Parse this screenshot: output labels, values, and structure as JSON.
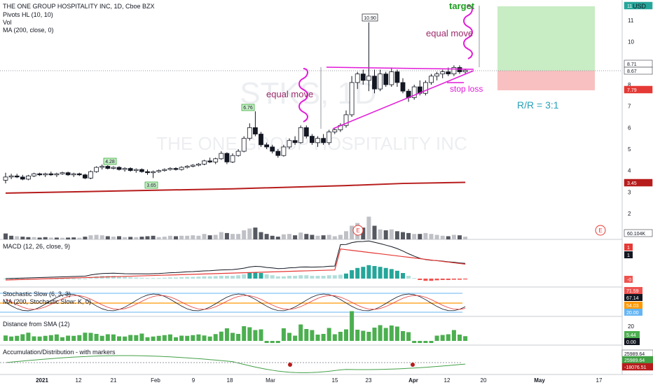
{
  "header": {
    "symbol_line": "THE ONE GROUP HOSPITALITY INC, 1D, Cboe BZX",
    "indicators": [
      "Pivots HL (10, 10)",
      "Vol",
      "MA (200, close, 0)"
    ],
    "currency": "USD",
    "watermark_symbol": "STKS, 1D",
    "watermark_name": "THE ONE GROUP HOSPITALITY INC"
  },
  "annotations": {
    "target": "target",
    "equal_move_right": "equal move",
    "equal_move_left": "equal move",
    "stop_loss": "stop loss",
    "rr": "R/R = 3:1",
    "pivot_labels": [
      "10.90",
      "6.76",
      "4.28",
      "3.65"
    ],
    "earnings_marker": "E"
  },
  "colors": {
    "up": "#ffffff",
    "down": "#131722",
    "annotation_magenta": "#e21ad8",
    "annotation_text": "#9c2a6b",
    "target_text": "#1e9e1e",
    "rr_text": "#26a0b8",
    "ma_line": "#b71c1c",
    "profit_zone": "#c8ecc4",
    "loss_zone": "#f8c0c0"
  },
  "chart_data": {
    "type": "candlestick",
    "price_axis_ticks": [
      "11",
      "10",
      "9",
      "8",
      "7",
      "6",
      "5",
      "4",
      "3",
      "2"
    ],
    "price_badges": [
      {
        "value": "11",
        "color": "#26a69a"
      },
      {
        "value": "8.71",
        "color": "#131722"
      },
      {
        "value": "8.67",
        "color": "#131722"
      },
      {
        "value": "7.79",
        "color": "#e53935"
      },
      {
        "value": "3.45",
        "color": "#b71c1c"
      },
      {
        "value": "60.104K",
        "color": "#131722"
      }
    ],
    "time_axis_labels": [
      "2021",
      "12",
      "21",
      "Feb",
      "9",
      "18",
      "Mar",
      "15",
      "23",
      "Apr",
      "12",
      "20",
      "May",
      "17"
    ],
    "ohlc": [
      [
        3.55,
        3.9,
        3.4,
        3.7
      ],
      [
        3.7,
        3.85,
        3.6,
        3.75
      ],
      [
        3.75,
        3.85,
        3.65,
        3.7
      ],
      [
        3.7,
        3.8,
        3.55,
        3.6
      ],
      [
        3.6,
        3.8,
        3.55,
        3.75
      ],
      [
        3.75,
        3.9,
        3.7,
        3.85
      ],
      [
        3.85,
        3.9,
        3.75,
        3.8
      ],
      [
        3.8,
        3.9,
        3.7,
        3.85
      ],
      [
        3.85,
        3.95,
        3.75,
        3.8
      ],
      [
        3.8,
        3.9,
        3.7,
        3.85
      ],
      [
        3.85,
        3.95,
        3.8,
        3.9
      ],
      [
        3.9,
        3.95,
        3.75,
        3.8
      ],
      [
        3.8,
        3.9,
        3.7,
        3.85
      ],
      [
        3.85,
        3.9,
        3.75,
        3.8
      ],
      [
        3.8,
        3.85,
        3.6,
        3.65
      ],
      [
        3.65,
        4.0,
        3.6,
        3.95
      ],
      [
        3.95,
        4.2,
        3.9,
        4.15
      ],
      [
        4.15,
        4.28,
        4.05,
        4.2
      ],
      [
        4.2,
        4.25,
        4.05,
        4.1
      ],
      [
        4.1,
        4.2,
        4.05,
        4.15
      ],
      [
        4.15,
        4.2,
        4.0,
        4.05
      ],
      [
        4.05,
        4.15,
        3.95,
        4.1
      ],
      [
        4.1,
        4.15,
        3.95,
        4.0
      ],
      [
        4.0,
        4.1,
        3.9,
        4.05
      ],
      [
        4.05,
        4.1,
        3.9,
        3.95
      ],
      [
        3.95,
        4.05,
        3.8,
        3.9
      ],
      [
        3.9,
        4.0,
        3.65,
        3.95
      ],
      [
        3.95,
        4.05,
        3.9,
        4.0
      ],
      [
        4.0,
        4.1,
        3.95,
        4.05
      ],
      [
        4.05,
        4.15,
        4.0,
        4.1
      ],
      [
        4.1,
        4.15,
        4.0,
        4.05
      ],
      [
        4.05,
        4.2,
        4.0,
        4.15
      ],
      [
        4.15,
        4.25,
        4.1,
        4.2
      ],
      [
        4.2,
        4.3,
        4.15,
        4.25
      ],
      [
        4.25,
        4.35,
        4.2,
        4.3
      ],
      [
        4.3,
        4.5,
        4.25,
        4.45
      ],
      [
        4.45,
        4.6,
        4.35,
        4.4
      ],
      [
        4.4,
        4.6,
        4.3,
        4.55
      ],
      [
        4.55,
        4.9,
        4.5,
        4.8
      ],
      [
        4.8,
        4.85,
        4.3,
        4.4
      ],
      [
        4.4,
        4.8,
        4.35,
        4.7
      ],
      [
        4.7,
        5.0,
        4.65,
        4.9
      ],
      [
        4.9,
        5.6,
        4.85,
        5.5
      ],
      [
        5.5,
        6.2,
        5.4,
        6.0
      ],
      [
        6.0,
        6.76,
        5.6,
        5.7
      ],
      [
        5.7,
        5.8,
        5.1,
        5.2
      ],
      [
        5.2,
        5.3,
        5.0,
        5.1
      ],
      [
        5.1,
        5.2,
        4.8,
        4.9
      ],
      [
        4.9,
        5.0,
        4.6,
        4.7
      ],
      [
        4.7,
        5.2,
        4.65,
        5.1
      ],
      [
        5.1,
        5.5,
        5.0,
        5.4
      ],
      [
        5.4,
        5.6,
        5.2,
        5.3
      ],
      [
        5.3,
        6.1,
        5.25,
        6.0
      ],
      [
        6.0,
        6.1,
        5.5,
        5.6
      ],
      [
        5.6,
        5.7,
        5.2,
        5.3
      ],
      [
        5.3,
        5.6,
        5.1,
        5.5
      ],
      [
        5.5,
        5.7,
        5.2,
        5.3
      ],
      [
        5.3,
        5.9,
        5.2,
        5.8
      ],
      [
        5.8,
        6.0,
        5.7,
        5.9
      ],
      [
        5.9,
        6.2,
        5.8,
        6.1
      ],
      [
        6.1,
        6.8,
        6.0,
        6.6
      ],
      [
        6.6,
        8.4,
        6.5,
        8.1
      ],
      [
        8.1,
        8.6,
        7.8,
        8.5
      ],
      [
        8.5,
        8.7,
        8.0,
        8.2
      ],
      [
        8.2,
        10.9,
        7.7,
        8.4
      ],
      [
        8.4,
        8.7,
        7.6,
        7.8
      ],
      [
        7.8,
        8.7,
        7.7,
        8.5
      ],
      [
        8.5,
        8.6,
        7.9,
        8.0
      ],
      [
        8.0,
        8.8,
        7.9,
        8.6
      ],
      [
        8.6,
        8.7,
        7.9,
        8.1
      ],
      [
        8.1,
        8.3,
        7.6,
        7.7
      ],
      [
        7.7,
        7.8,
        7.2,
        7.4
      ],
      [
        7.4,
        8.0,
        7.3,
        7.9
      ],
      [
        7.9,
        8.2,
        7.5,
        7.6
      ],
      [
        7.6,
        8.2,
        7.5,
        8.1
      ],
      [
        8.1,
        8.5,
        8.0,
        8.4
      ],
      [
        8.4,
        8.6,
        8.2,
        8.5
      ],
      [
        8.5,
        8.7,
        8.3,
        8.6
      ],
      [
        8.6,
        8.8,
        8.4,
        8.5
      ],
      [
        8.5,
        8.9,
        8.4,
        8.8
      ],
      [
        8.8,
        8.9,
        8.5,
        8.6
      ],
      [
        8.6,
        8.75,
        8.5,
        8.67
      ]
    ],
    "volume": [
      [
        65,
        "d"
      ],
      [
        40,
        "d"
      ],
      [
        35,
        "u"
      ],
      [
        30,
        "d"
      ],
      [
        25,
        "d"
      ],
      [
        25,
        "u"
      ],
      [
        20,
        "d"
      ],
      [
        25,
        "d"
      ],
      [
        20,
        "u"
      ],
      [
        20,
        "d"
      ],
      [
        18,
        "u"
      ],
      [
        20,
        "d"
      ],
      [
        22,
        "d"
      ],
      [
        18,
        "u"
      ],
      [
        30,
        "d"
      ],
      [
        45,
        "u"
      ],
      [
        50,
        "u"
      ],
      [
        45,
        "u"
      ],
      [
        35,
        "d"
      ],
      [
        30,
        "u"
      ],
      [
        35,
        "d"
      ],
      [
        25,
        "u"
      ],
      [
        28,
        "d"
      ],
      [
        25,
        "u"
      ],
      [
        30,
        "d"
      ],
      [
        35,
        "d"
      ],
      [
        40,
        "d"
      ],
      [
        25,
        "u"
      ],
      [
        30,
        "u"
      ],
      [
        40,
        "u"
      ],
      [
        35,
        "d"
      ],
      [
        40,
        "u"
      ],
      [
        40,
        "u"
      ],
      [
        45,
        "u"
      ],
      [
        40,
        "u"
      ],
      [
        60,
        "u"
      ],
      [
        45,
        "d"
      ],
      [
        50,
        "u"
      ],
      [
        80,
        "u"
      ],
      [
        70,
        "d"
      ],
      [
        60,
        "u"
      ],
      [
        60,
        "u"
      ],
      [
        100,
        "u"
      ],
      [
        120,
        "u"
      ],
      [
        130,
        "d"
      ],
      [
        80,
        "d"
      ],
      [
        60,
        "d"
      ],
      [
        40,
        "d"
      ],
      [
        30,
        "d"
      ],
      [
        55,
        "u"
      ],
      [
        60,
        "u"
      ],
      [
        45,
        "d"
      ],
      [
        75,
        "u"
      ],
      [
        60,
        "d"
      ],
      [
        50,
        "d"
      ],
      [
        40,
        "u"
      ],
      [
        45,
        "d"
      ],
      [
        50,
        "u"
      ],
      [
        35,
        "u"
      ],
      [
        50,
        "u"
      ],
      [
        90,
        "u"
      ],
      [
        150,
        "u"
      ],
      [
        180,
        "u"
      ],
      [
        130,
        "d"
      ],
      [
        250,
        "u"
      ],
      [
        150,
        "d"
      ],
      [
        110,
        "u"
      ],
      [
        100,
        "d"
      ],
      [
        110,
        "u"
      ],
      [
        90,
        "d"
      ],
      [
        80,
        "d"
      ],
      [
        70,
        "d"
      ],
      [
        60,
        "u"
      ],
      [
        60,
        "d"
      ],
      [
        70,
        "u"
      ],
      [
        60,
        "u"
      ],
      [
        50,
        "u"
      ],
      [
        40,
        "u"
      ],
      [
        35,
        "d"
      ],
      [
        50,
        "u"
      ],
      [
        45,
        "d"
      ],
      [
        30,
        "u"
      ]
    ],
    "ma200": [
      [
        0,
        2.95
      ],
      [
        20,
        3.05
      ],
      [
        40,
        3.15
      ],
      [
        60,
        3.3
      ],
      [
        70,
        3.4
      ],
      [
        81,
        3.45
      ]
    ],
    "macd_histogram": [
      0,
      0,
      0,
      0,
      0,
      0,
      0,
      0,
      0,
      0,
      0,
      0,
      0,
      0,
      0,
      0.05,
      0.08,
      0.1,
      0.1,
      0.1,
      0.08,
      0.06,
      0.05,
      0.04,
      0.03,
      0.02,
      0.02,
      0.02,
      0.03,
      0.04,
      0.04,
      0.05,
      0.06,
      0.06,
      0.07,
      0.08,
      0.08,
      0.09,
      0.1,
      0.1,
      0.1,
      0.12,
      0.15,
      0.2,
      0.22,
      0.2,
      0.15,
      0.12,
      0.08,
      0.08,
      0.1,
      0.1,
      0.12,
      0.12,
      0.1,
      0.1,
      0.1,
      0.12,
      0.12,
      0.14,
      0.18,
      0.3,
      0.38,
      0.42,
      0.48,
      0.45,
      0.42,
      0.38,
      0.34,
      0.28,
      0.2,
      0.1,
      0.02,
      -0.05,
      -0.08,
      -0.08,
      -0.06,
      -0.05,
      -0.05,
      -0.04,
      -0.04,
      -0.03
    ],
    "macd_badges": [
      "1",
      "1",
      "-0"
    ],
    "stoch_badges": [
      "71.59",
      "67.14",
      "54.03",
      "20.00"
    ],
    "distance_badges": [
      "5.44",
      "0.00"
    ],
    "distance_axis": [
      "20"
    ],
    "ad_badges": [
      "25989.64",
      "25989.64",
      "-18076.51"
    ]
  },
  "panes": {
    "macd_title": "MACD (12, 26, close, 9)",
    "stoch_title": "Stochastic Slow (6, 3, 3)",
    "stoch_ma_title": "MA (200, Stochastic Slow: K, 0)",
    "distance_title": "Distance from SMA (12)",
    "ad_title": "Accumulation/Distribution - with markers"
  }
}
